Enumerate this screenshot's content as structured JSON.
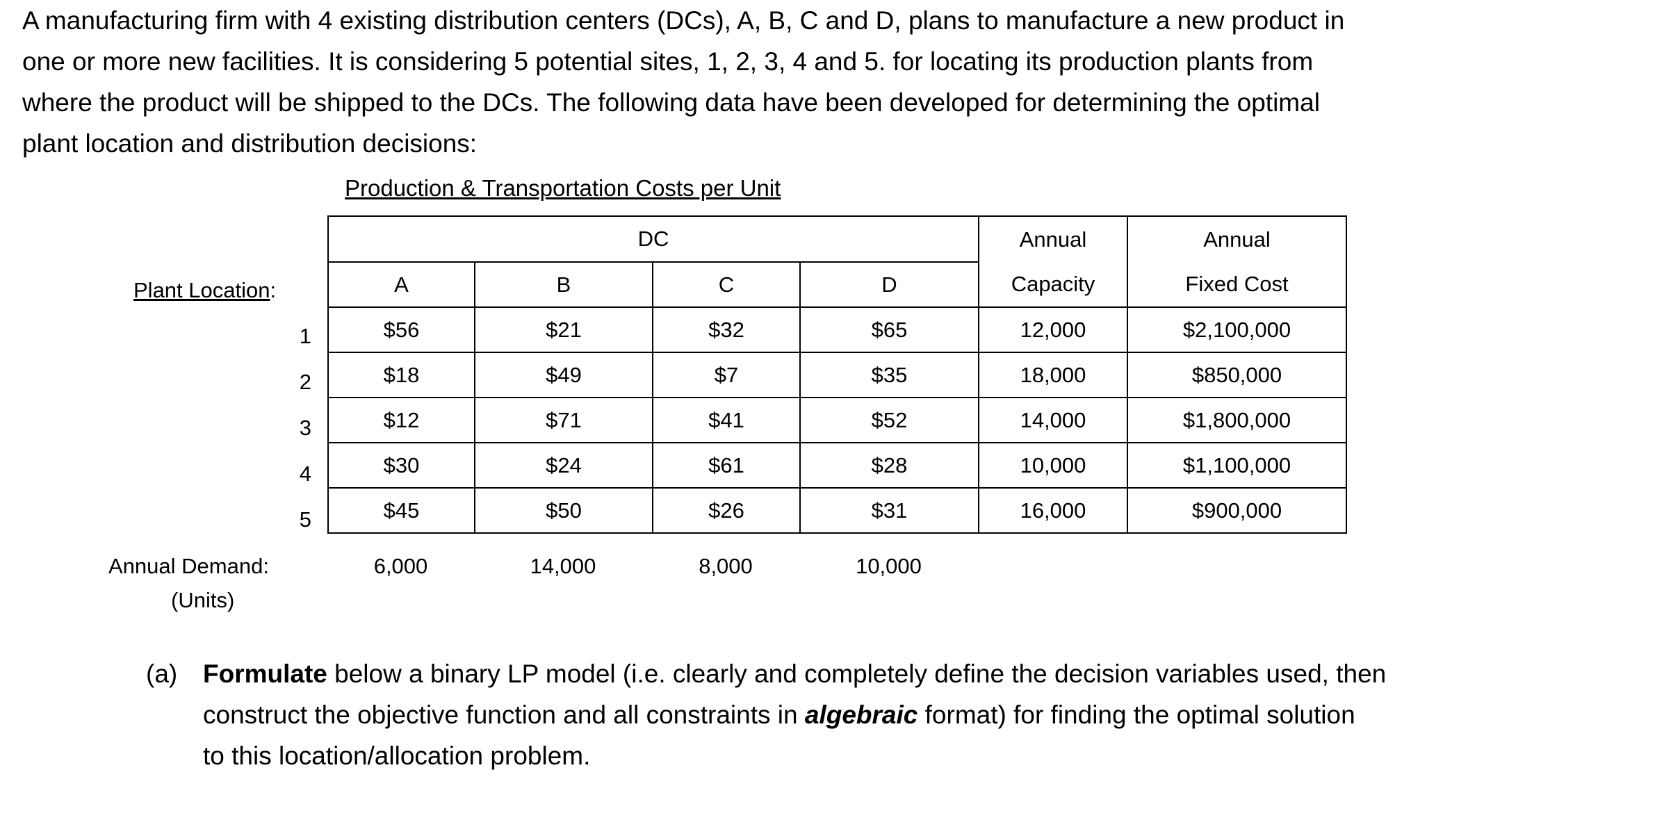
{
  "intro": {
    "lines": [
      "A manufacturing firm with 4 existing distribution centers (DCs), A, B, C and D, plans to manufacture a new product in",
      "one or more new facilities. It is considering 5 potential sites, 1, 2, 3, 4 and 5. for locating its production plants from",
      "where the product will be shipped to the DCs. The following data have been developed for determining the optimal",
      "plant location and distribution decisions:"
    ]
  },
  "table": {
    "caption": "Production & Transportation Costs per Unit",
    "dc_header": "DC",
    "capacity_header": [
      "Annual",
      "Capacity"
    ],
    "fixed_cost_header": [
      "Annual",
      "Fixed Cost"
    ],
    "plant_location_label": "Plant Location",
    "plant_location_colon": ":",
    "columns": [
      "A",
      "B",
      "C",
      "D"
    ],
    "rows": [
      {
        "plant": "1",
        "costs": [
          "$56",
          "$21",
          "$32",
          "$65"
        ],
        "capacity": "12,000",
        "fixed_cost": "$2,100,000"
      },
      {
        "plant": "2",
        "costs": [
          "$18",
          "$49",
          "$7",
          "$35"
        ],
        "capacity": "18,000",
        "fixed_cost": "$850,000"
      },
      {
        "plant": "3",
        "costs": [
          "$12",
          "$71",
          "$41",
          "$52"
        ],
        "capacity": "14,000",
        "fixed_cost": "$1,800,000"
      },
      {
        "plant": "4",
        "costs": [
          "$30",
          "$24",
          "$61",
          "$28"
        ],
        "capacity": "10,000",
        "fixed_cost": "$1,100,000"
      },
      {
        "plant": "5",
        "costs": [
          "$45",
          "$50",
          "$26",
          "$31"
        ],
        "capacity": "16,000",
        "fixed_cost": "$900,000"
      }
    ],
    "demand_label": "Annual Demand:",
    "demand_units": "(Units)",
    "demand": [
      "6,000",
      "14,000",
      "8,000",
      "10,000"
    ]
  },
  "question": {
    "number": "(a)",
    "bold_word": "Formulate",
    "line1_rest": " below a binary LP model (i.e. clearly and completely define the decision variables used, then",
    "line2_pre": "construct the objective function and all constraints in ",
    "line2_emph": "algebraic",
    "line2_post": " format) for finding the optimal solution",
    "line3": "to this location/allocation problem."
  }
}
